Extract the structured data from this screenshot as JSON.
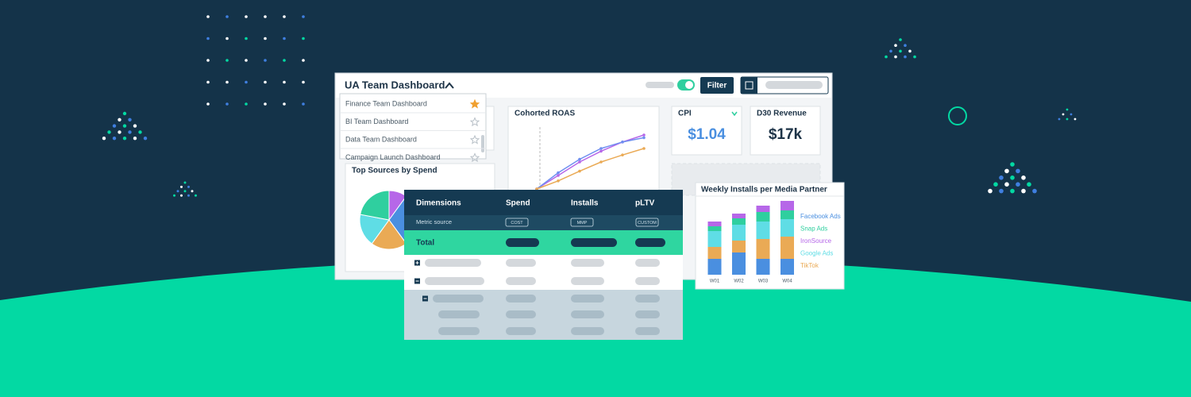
{
  "header": {
    "title": "UA Team Dashboard",
    "filter_button": "Filter"
  },
  "dropdown": {
    "items": [
      "Finance Team Dashboard",
      "BI Team Dashboard",
      "Data Team Dashboard",
      "Campaign Launch Dashboard"
    ]
  },
  "cards": {
    "cohorted_roas": {
      "title": "Cohorted ROAS",
      "lines": [
        {
          "color": "#b667e8",
          "values": [
            0,
            2.5,
            5,
            7,
            8.7,
            10
          ]
        },
        {
          "color": "#6f8ff0",
          "values": [
            0,
            3,
            5.5,
            7.5,
            8.7,
            9.5
          ]
        },
        {
          "color": "#eaaa55",
          "values": [
            0,
            1.5,
            3.3,
            5,
            6.3,
            7.5
          ]
        }
      ]
    },
    "cpi": {
      "title": "CPI",
      "value": "$1.04"
    },
    "d30_revenue": {
      "title": "D30 Revenue",
      "value": "$17k"
    },
    "top_sources": {
      "title": "Top Sources by Spend",
      "slices": [
        {
          "color": "#b667e8",
          "value": 10
        },
        {
          "color": "#4a8fe0",
          "value": 30
        },
        {
          "color": "#eaaa55",
          "value": 20
        },
        {
          "color": "#5fdde5",
          "value": 18
        },
        {
          "color": "#2fcf9f",
          "value": 22
        }
      ]
    }
  },
  "table": {
    "headers": [
      "Dimensions",
      "Spend",
      "Installs",
      "pLTV"
    ],
    "metric_source": {
      "label": "Metric source",
      "badges": [
        "COST",
        "MMP",
        "CUSTOM"
      ]
    },
    "total": "Total"
  },
  "weekly_installs": {
    "type": "bar",
    "title": "Weekly Installs per Media Partner",
    "categories": [
      "W01",
      "W02",
      "W03",
      "W04"
    ],
    "series": [
      {
        "name": "Facebook Ads",
        "color": "#4a8fe0",
        "values": [
          20,
          28,
          20,
          20
        ]
      },
      {
        "name": "TikTok",
        "color": "#eaaa55",
        "values": [
          15,
          15,
          25,
          28
        ]
      },
      {
        "name": "Google Ads",
        "color": "#5fdde5",
        "values": [
          20,
          20,
          22,
          22
        ]
      },
      {
        "name": "Snap Ads",
        "color": "#2fcf9f",
        "values": [
          6,
          8,
          12,
          11
        ]
      },
      {
        "name": "IronSource",
        "color": "#b667e8",
        "values": [
          6,
          6,
          8,
          12
        ]
      }
    ],
    "legend_order": [
      "Facebook Ads",
      "Snap Ads",
      "IronSource",
      "Google Ads",
      "TikTok"
    ]
  }
}
